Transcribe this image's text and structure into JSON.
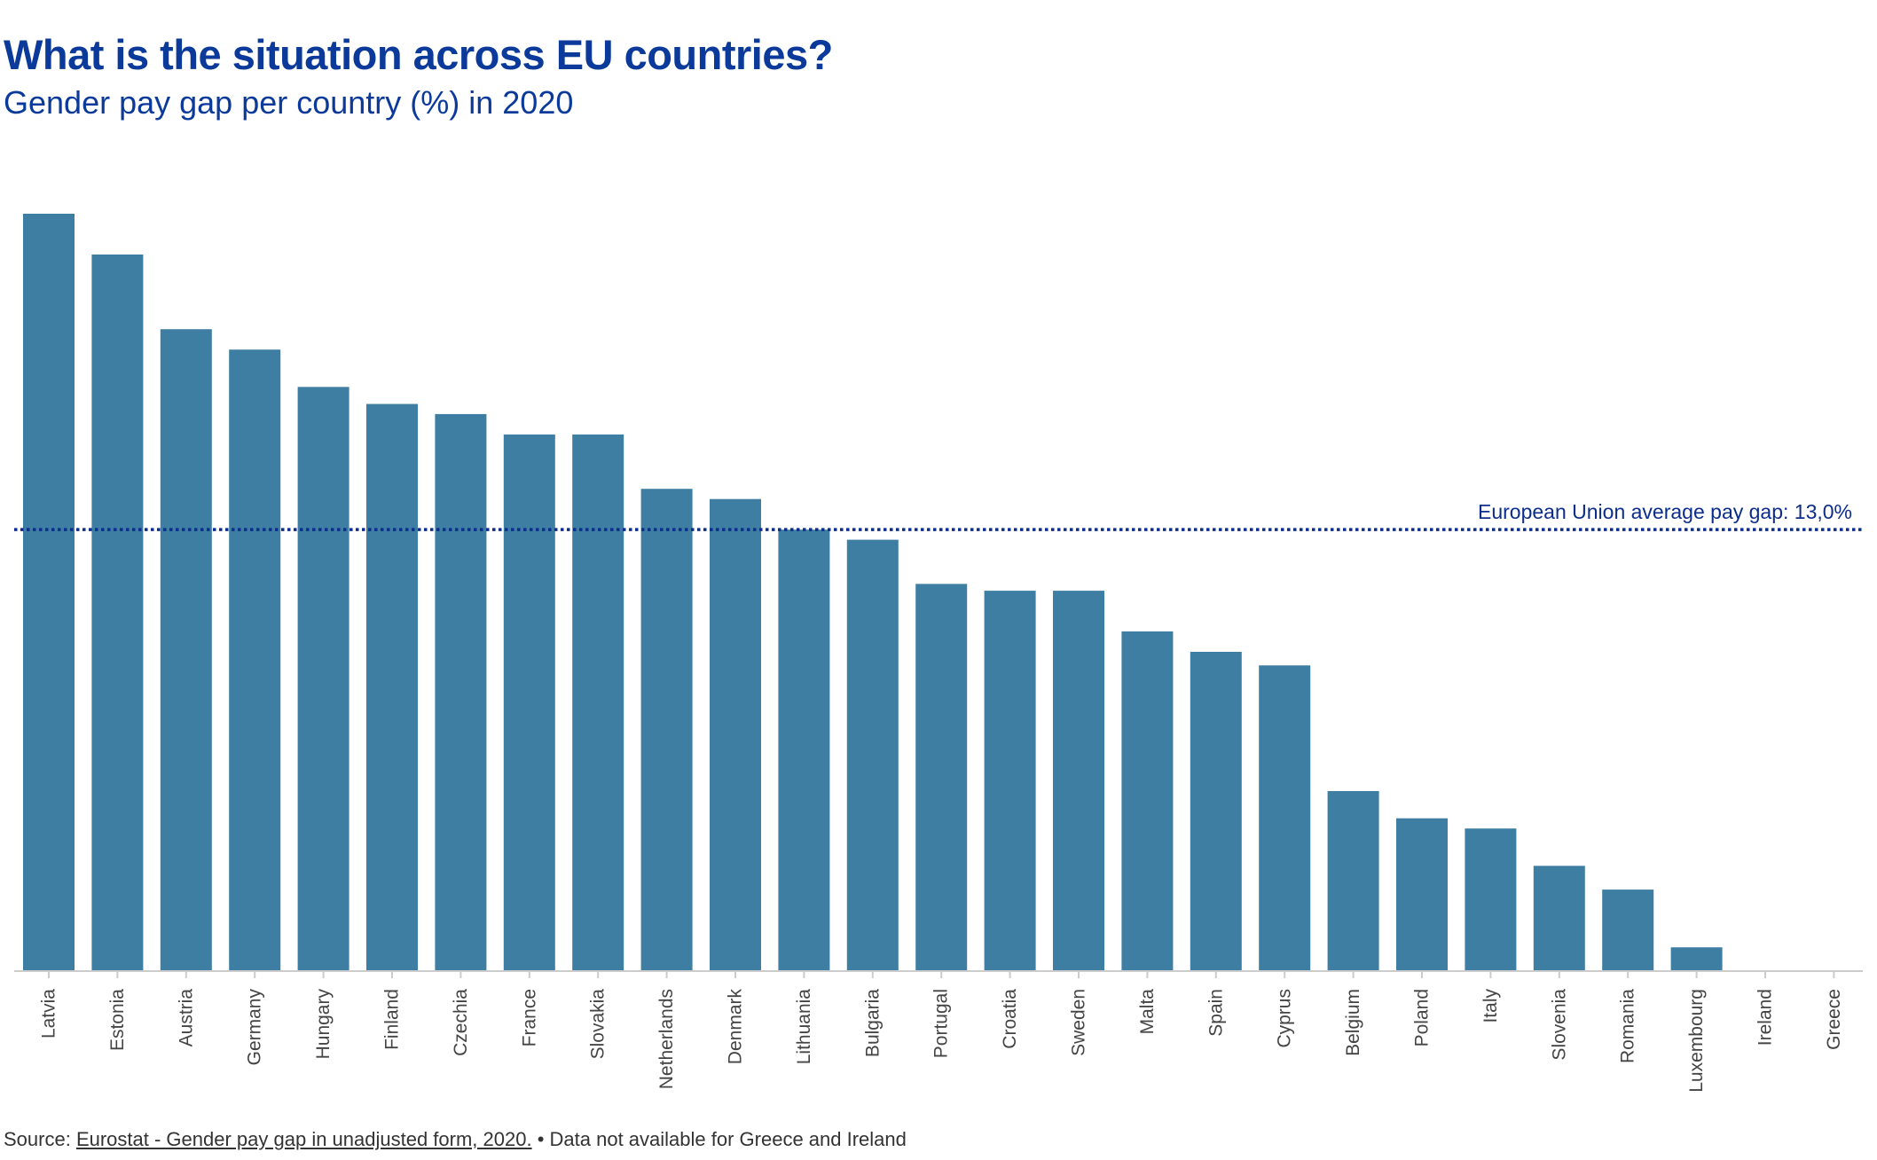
{
  "header": {
    "title": "What is the situation across EU countries?",
    "subtitle": "Gender pay gap per country (%) in 2020"
  },
  "footer": {
    "source_prefix": "Source: ",
    "source_link": "Eurostat - Gender pay gap in unadjusted form, 2020.",
    "note": " • Data not available for Greece and Ireland"
  },
  "colors": {
    "bar": "#3e7ea3",
    "average_line": "#0b2d8c",
    "axis": "#cccccc",
    "tick_label": "#444444",
    "title": "#0b3a9b"
  },
  "chart_data": {
    "type": "bar",
    "title": "What is the situation across EU countries?",
    "subtitle": "Gender pay gap per country (%) in 2020",
    "xlabel": "",
    "ylabel": "",
    "ylim": [
      0,
      23
    ],
    "grid": false,
    "categories": [
      "Latvia",
      "Estonia",
      "Austria",
      "Germany",
      "Hungary",
      "Finland",
      "Czechia",
      "France",
      "Slovakia",
      "Netherlands",
      "Denmark",
      "Lithuania",
      "Bulgaria",
      "Portugal",
      "Croatia",
      "Sweden",
      "Malta",
      "Spain",
      "Cyprus",
      "Belgium",
      "Poland",
      "Italy",
      "Slovenia",
      "Romania",
      "Luxembourg",
      "Ireland",
      "Greece"
    ],
    "values": [
      22.3,
      21.1,
      18.9,
      18.3,
      17.2,
      16.7,
      16.4,
      15.8,
      15.8,
      14.2,
      13.9,
      13.0,
      12.7,
      11.4,
      11.2,
      11.2,
      10.0,
      9.4,
      9.0,
      5.3,
      4.5,
      4.2,
      3.1,
      2.4,
      0.7,
      null,
      null
    ],
    "reference_line": {
      "value": 13.0,
      "label": "European Union average pay gap: 13,0%"
    }
  }
}
